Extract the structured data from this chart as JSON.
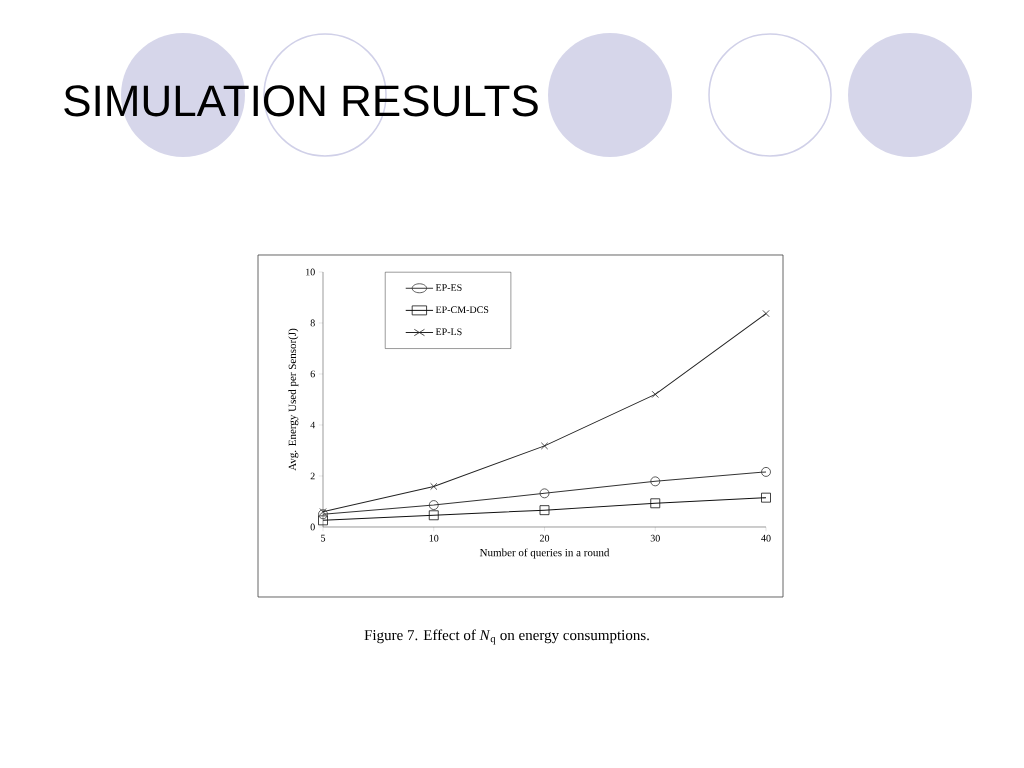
{
  "chart_data": {
    "type": "line",
    "title": "SIMULATION RESULTS",
    "xlabel": "Number of queries in a  round",
    "ylabel": "Avg. Energy Used per Sensor(J)",
    "categories": [
      "5",
      "10",
      "20",
      "30",
      "40"
    ],
    "series": [
      {
        "name": "EP-ES",
        "color": "#333333",
        "marker": "circle",
        "values": [
          0.5,
          0.86,
          1.32,
          1.79,
          2.16
        ]
      },
      {
        "name": "EP-CM-DCS",
        "color": "#111111",
        "marker": "square",
        "values": [
          0.26,
          0.46,
          0.66,
          0.93,
          1.15
        ]
      },
      {
        "name": "EP-LS",
        "color": "#222222",
        "marker": "cross",
        "values": [
          0.6,
          1.59,
          3.18,
          5.2,
          8.37
        ]
      }
    ],
    "ylim": [
      0,
      10
    ],
    "yticks": [
      0,
      2,
      4,
      6,
      8,
      10
    ],
    "legend": "top left",
    "line_style": "solid",
    "annotations": [
      "Figure 7.   Effect of *N*$_{q}$ on energy consumptions."
    ]
  }
}
